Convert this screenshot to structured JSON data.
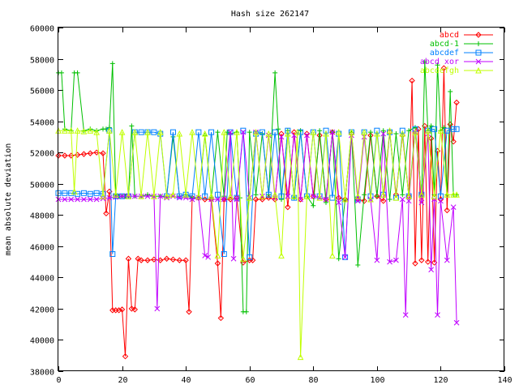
{
  "chart_data": {
    "type": "line",
    "title": "Hash size 262147",
    "xlabel": "",
    "ylabel": "mean absolute deviation",
    "xlim": [
      0,
      140
    ],
    "ylim": [
      38000,
      60000
    ],
    "x_ticks": [
      "0",
      "20",
      "40",
      "60",
      "80",
      "100",
      "120",
      "140"
    ],
    "y_ticks": [
      "38000",
      "40000",
      "42000",
      "44000",
      "46000",
      "48000",
      "50000",
      "52000",
      "54000",
      "56000",
      "58000",
      "60000"
    ],
    "grid": false,
    "legend_position": "top-right",
    "series": [
      {
        "name": "abcd",
        "color": "#ff0000",
        "marker": "diamond",
        "x": [
          0,
          2,
          4,
          6,
          8,
          10,
          12,
          14,
          15,
          16,
          17,
          18,
          19,
          20,
          21,
          22,
          23,
          24,
          25,
          26,
          28,
          30,
          32,
          34,
          36,
          38,
          40,
          41,
          42,
          44,
          46,
          48,
          50,
          51,
          52,
          54,
          56,
          58,
          60,
          61,
          62,
          64,
          66,
          68,
          70,
          72,
          74,
          76,
          78,
          80,
          82,
          84,
          86,
          88,
          90,
          92,
          94,
          96,
          98,
          100,
          102,
          104,
          106,
          108,
          110,
          111,
          112,
          113,
          114,
          115,
          116,
          117,
          118,
          119,
          120,
          121,
          122,
          123,
          124,
          125
        ],
        "y": [
          51800,
          51800,
          51800,
          51850,
          51900,
          51950,
          52000,
          51950,
          48100,
          49500,
          41900,
          41900,
          41900,
          41950,
          38950,
          45200,
          42000,
          41950,
          45200,
          45100,
          45100,
          45150,
          45100,
          45200,
          45150,
          45100,
          45100,
          41800,
          49100,
          49100,
          49000,
          49000,
          44900,
          41400,
          49000,
          49000,
          49100,
          44950,
          45100,
          45100,
          49000,
          49000,
          49100,
          49000,
          53200,
          48500,
          53300,
          49000,
          53200,
          49200,
          53100,
          49000,
          53300,
          49100,
          49000,
          53200,
          49000,
          48900,
          53100,
          49200,
          48900,
          53300,
          49300,
          53100,
          49200,
          56600,
          44900,
          53500,
          45100,
          53700,
          45000,
          52900,
          44950,
          52100,
          49000,
          57400,
          48300,
          53800,
          52700,
          55200
        ]
      },
      {
        "name": "abcd-1",
        "color": "#00c000",
        "marker": "plus",
        "x": [
          0,
          1,
          2,
          4,
          5,
          6,
          8,
          10,
          12,
          14,
          15,
          16,
          17,
          18,
          19,
          20,
          21,
          22,
          23,
          24,
          26,
          28,
          30,
          32,
          34,
          36,
          38,
          40,
          42,
          44,
          46,
          48,
          50,
          52,
          53,
          54,
          56,
          57,
          58,
          59,
          60,
          62,
          64,
          66,
          68,
          69,
          70,
          72,
          74,
          76,
          78,
          80,
          82,
          84,
          86,
          88,
          90,
          92,
          94,
          96,
          98,
          100,
          102,
          104,
          106,
          108,
          110,
          112,
          114,
          115,
          116,
          117,
          118,
          119,
          120,
          121,
          122,
          123,
          124,
          125
        ],
        "y": [
          57100,
          57100,
          53500,
          53400,
          57100,
          57100,
          53400,
          53500,
          53400,
          53500,
          53500,
          53600,
          57700,
          49300,
          49200,
          49200,
          49200,
          49200,
          53700,
          49200,
          49200,
          49300,
          49200,
          49200,
          49200,
          53000,
          49200,
          49300,
          49100,
          49100,
          53100,
          49100,
          53300,
          49200,
          53300,
          53200,
          53300,
          49100,
          41800,
          41800,
          53300,
          49300,
          53200,
          49300,
          57100,
          53500,
          49000,
          53400,
          49100,
          53400,
          49200,
          48600,
          53400,
          48800,
          53300,
          45200,
          49000,
          53300,
          44800,
          49300,
          53300,
          49200,
          53400,
          49000,
          53200,
          49300,
          53400,
          53600,
          49200,
          57800,
          53400,
          53700,
          49300,
          57600,
          53400,
          53600,
          49300,
          55900,
          49300,
          49300
        ]
      },
      {
        "name": "abcdef",
        "color": "#0080ff",
        "marker": "square",
        "x": [
          0,
          2,
          4,
          6,
          8,
          10,
          12,
          14,
          16,
          17,
          18,
          20,
          22,
          24,
          26,
          28,
          30,
          32,
          34,
          36,
          38,
          40,
          42,
          44,
          46,
          48,
          50,
          52,
          54,
          56,
          58,
          60,
          62,
          64,
          66,
          68,
          70,
          72,
          74,
          76,
          78,
          80,
          82,
          84,
          86,
          88,
          90,
          92,
          94,
          96,
          98,
          100,
          102,
          104,
          106,
          108,
          110,
          112,
          114,
          116,
          118,
          120,
          122,
          124,
          125
        ],
        "y": [
          49400,
          49400,
          49400,
          49350,
          49400,
          49350,
          49400,
          49350,
          53400,
          45500,
          49200,
          49200,
          49200,
          53300,
          53300,
          53300,
          53300,
          53200,
          49200,
          53300,
          49200,
          49300,
          49200,
          53300,
          49200,
          53300,
          49300,
          45500,
          53300,
          49100,
          53400,
          45300,
          53200,
          53300,
          49300,
          53300,
          49200,
          53400,
          49100,
          53300,
          49200,
          53300,
          49200,
          53400,
          49100,
          53200,
          45300,
          53300,
          49000,
          53300,
          49200,
          53400,
          49300,
          53300,
          49100,
          53400,
          49200,
          53500,
          49300,
          53400,
          53500,
          49200,
          53400,
          53500,
          53500
        ]
      },
      {
        "name": "abcd xor",
        "color": "#c000ff",
        "marker": "cross",
        "x": [
          0,
          2,
          4,
          6,
          8,
          10,
          12,
          14,
          16,
          18,
          20,
          22,
          24,
          26,
          28,
          30,
          31,
          32,
          34,
          36,
          38,
          40,
          42,
          44,
          46,
          47,
          48,
          50,
          52,
          54,
          55,
          56,
          58,
          60,
          62,
          64,
          66,
          68,
          70,
          72,
          74,
          76,
          78,
          80,
          82,
          84,
          86,
          88,
          90,
          92,
          94,
          96,
          98,
          100,
          102,
          104,
          106,
          108,
          109,
          110,
          112,
          114,
          116,
          117,
          118,
          119,
          120,
          122,
          124,
          125
        ],
        "y": [
          49000,
          49000,
          49000,
          49000,
          49000,
          49000,
          49000,
          49050,
          49100,
          49150,
          49200,
          49200,
          49200,
          49200,
          49200,
          49200,
          42000,
          49200,
          49100,
          49200,
          49100,
          49100,
          49000,
          49100,
          45400,
          45300,
          49000,
          49000,
          49000,
          53300,
          45200,
          49000,
          53300,
          49100,
          53300,
          49200,
          53100,
          49100,
          53000,
          49200,
          53100,
          49000,
          53100,
          49200,
          49100,
          49000,
          53300,
          48800,
          45300,
          53100,
          48900,
          53000,
          49000,
          45100,
          53200,
          45000,
          45100,
          49000,
          41600,
          48900,
          53300,
          48800,
          53200,
          44500,
          49000,
          41600,
          48900,
          45100,
          48500,
          41100
        ]
      },
      {
        "name": "abcdefgh",
        "color": "#c0ff00",
        "marker": "triangle",
        "x": [
          0,
          2,
          4,
          5,
          6,
          8,
          10,
          12,
          14,
          16,
          18,
          20,
          22,
          24,
          26,
          28,
          30,
          32,
          34,
          36,
          38,
          40,
          42,
          44,
          46,
          48,
          50,
          52,
          54,
          56,
          58,
          60,
          62,
          64,
          66,
          68,
          70,
          72,
          74,
          75,
          76,
          78,
          80,
          82,
          84,
          86,
          88,
          90,
          92,
          94,
          96,
          98,
          100,
          102,
          104,
          106,
          108,
          110,
          112,
          114,
          116,
          118,
          120,
          122,
          124,
          125
        ],
        "y": [
          53400,
          53400,
          53400,
          49500,
          53400,
          53350,
          53400,
          53300,
          49200,
          53400,
          49300,
          53300,
          49200,
          53300,
          49200,
          53300,
          49200,
          53300,
          49200,
          49300,
          53200,
          49300,
          53300,
          49200,
          53200,
          49200,
          45400,
          53300,
          49200,
          53300,
          45200,
          49100,
          53300,
          49200,
          53200,
          49300,
          45400,
          53200,
          49200,
          53300,
          38900,
          49200,
          53300,
          49100,
          53200,
          45400,
          53300,
          49000,
          53300,
          49200,
          53300,
          49000,
          53200,
          49300,
          53400,
          49100,
          53200,
          49200,
          53300,
          49300,
          53400,
          49200,
          53400,
          49300,
          49300,
          49300
        ]
      }
    ]
  }
}
